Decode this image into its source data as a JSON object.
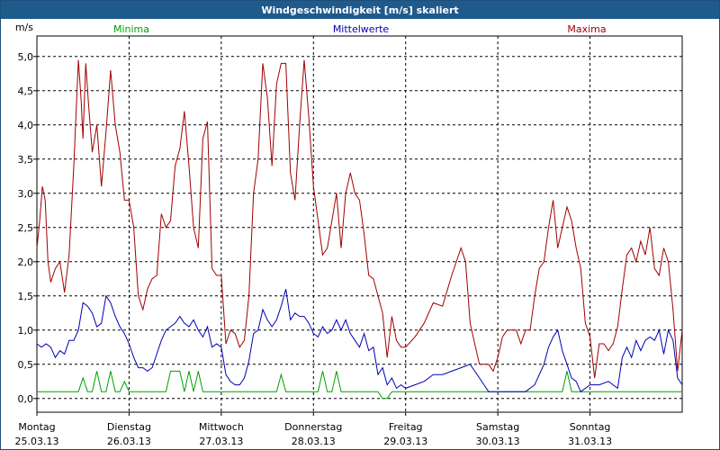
{
  "window": {
    "title": "Windgeschwindigkeit [m/s] skaliert"
  },
  "chart_data": {
    "type": "line",
    "title": "Windgeschwindigkeit [m/s] skaliert",
    "ylabel": "m/s",
    "ylim": [
      -0.2,
      5.3
    ],
    "xlim": [
      0,
      7
    ],
    "grid": true,
    "legend": [
      "Minima",
      "Mittelwerte",
      "Maxima"
    ],
    "yticks": [
      {
        "v": 0.0,
        "label": "0,0"
      },
      {
        "v": 0.5,
        "label": "0,5"
      },
      {
        "v": 1.0,
        "label": "1,0"
      },
      {
        "v": 1.5,
        "label": "1,5"
      },
      {
        "v": 2.0,
        "label": "2,0"
      },
      {
        "v": 2.5,
        "label": "2,5"
      },
      {
        "v": 3.0,
        "label": "3,0"
      },
      {
        "v": 3.5,
        "label": "3,5"
      },
      {
        "v": 4.0,
        "label": "4,0"
      },
      {
        "v": 4.5,
        "label": "4,5"
      },
      {
        "v": 5.0,
        "label": "5,0"
      }
    ],
    "days": [
      {
        "name": "Montag",
        "date": "25.03.13",
        "x": 0
      },
      {
        "name": "Dienstag",
        "date": "26.03.13",
        "x": 1
      },
      {
        "name": "Mittwoch",
        "date": "27.03.13",
        "x": 2
      },
      {
        "name": "Donnerstag",
        "date": "28.03.13",
        "x": 3
      },
      {
        "name": "Freitag",
        "date": "29.03.13",
        "x": 4
      },
      {
        "name": "Samstag",
        "date": "30.03.13",
        "x": 5
      },
      {
        "name": "Sonntag",
        "date": "31.03.13",
        "x": 6
      }
    ],
    "series": [
      {
        "name": "Minima",
        "color": "#00a000",
        "points": [
          [
            0,
            0.1
          ],
          [
            0.45,
            0.1
          ],
          [
            0.5,
            0.3
          ],
          [
            0.55,
            0.1
          ],
          [
            0.6,
            0.1
          ],
          [
            0.65,
            0.4
          ],
          [
            0.7,
            0.1
          ],
          [
            0.75,
            0.1
          ],
          [
            0.8,
            0.4
          ],
          [
            0.85,
            0.1
          ],
          [
            0.9,
            0.1
          ],
          [
            0.95,
            0.25
          ],
          [
            1.0,
            0.1
          ],
          [
            1.4,
            0.1
          ],
          [
            1.45,
            0.4
          ],
          [
            1.55,
            0.4
          ],
          [
            1.6,
            0.1
          ],
          [
            1.65,
            0.4
          ],
          [
            1.7,
            0.1
          ],
          [
            1.75,
            0.4
          ],
          [
            1.8,
            0.1
          ],
          [
            2.0,
            0.1
          ],
          [
            2.6,
            0.1
          ],
          [
            2.65,
            0.35
          ],
          [
            2.7,
            0.1
          ],
          [
            3.05,
            0.1
          ],
          [
            3.1,
            0.4
          ],
          [
            3.15,
            0.1
          ],
          [
            3.2,
            0.1
          ],
          [
            3.25,
            0.4
          ],
          [
            3.3,
            0.1
          ],
          [
            3.7,
            0.1
          ],
          [
            3.75,
            0.0
          ],
          [
            3.8,
            0.0
          ],
          [
            3.85,
            0.1
          ],
          [
            4.0,
            0.1
          ],
          [
            5.0,
            0.1
          ],
          [
            5.7,
            0.1
          ],
          [
            5.75,
            0.4
          ],
          [
            5.8,
            0.1
          ],
          [
            6.0,
            0.1
          ],
          [
            7.0,
            0.1
          ]
        ]
      },
      {
        "name": "Mittelwerte",
        "color": "#0000b4",
        "points": [
          [
            0,
            0.8
          ],
          [
            0.05,
            0.75
          ],
          [
            0.1,
            0.8
          ],
          [
            0.15,
            0.75
          ],
          [
            0.2,
            0.6
          ],
          [
            0.25,
            0.7
          ],
          [
            0.3,
            0.65
          ],
          [
            0.35,
            0.85
          ],
          [
            0.4,
            0.85
          ],
          [
            0.45,
            1.0
          ],
          [
            0.5,
            1.4
          ],
          [
            0.55,
            1.35
          ],
          [
            0.6,
            1.25
          ],
          [
            0.65,
            1.05
          ],
          [
            0.7,
            1.1
          ],
          [
            0.75,
            1.5
          ],
          [
            0.8,
            1.4
          ],
          [
            0.85,
            1.2
          ],
          [
            0.9,
            1.05
          ],
          [
            0.95,
            0.95
          ],
          [
            1.0,
            0.8
          ],
          [
            1.05,
            0.6
          ],
          [
            1.1,
            0.45
          ],
          [
            1.15,
            0.45
          ],
          [
            1.2,
            0.4
          ],
          [
            1.25,
            0.45
          ],
          [
            1.3,
            0.65
          ],
          [
            1.35,
            0.85
          ],
          [
            1.4,
            1.0
          ],
          [
            1.45,
            1.05
          ],
          [
            1.5,
            1.1
          ],
          [
            1.55,
            1.2
          ],
          [
            1.6,
            1.1
          ],
          [
            1.65,
            1.05
          ],
          [
            1.7,
            1.15
          ],
          [
            1.75,
            1.0
          ],
          [
            1.8,
            0.9
          ],
          [
            1.85,
            1.05
          ],
          [
            1.9,
            0.75
          ],
          [
            1.95,
            0.8
          ],
          [
            2.0,
            0.75
          ],
          [
            2.05,
            0.35
          ],
          [
            2.1,
            0.25
          ],
          [
            2.15,
            0.2
          ],
          [
            2.2,
            0.2
          ],
          [
            2.25,
            0.3
          ],
          [
            2.3,
            0.55
          ],
          [
            2.35,
            0.95
          ],
          [
            2.4,
            1.0
          ],
          [
            2.45,
            1.3
          ],
          [
            2.5,
            1.15
          ],
          [
            2.55,
            1.05
          ],
          [
            2.6,
            1.15
          ],
          [
            2.65,
            1.35
          ],
          [
            2.7,
            1.6
          ],
          [
            2.75,
            1.15
          ],
          [
            2.8,
            1.25
          ],
          [
            2.85,
            1.2
          ],
          [
            2.9,
            1.2
          ],
          [
            2.95,
            1.1
          ],
          [
            3.0,
            0.95
          ],
          [
            3.05,
            0.9
          ],
          [
            3.1,
            1.05
          ],
          [
            3.15,
            0.95
          ],
          [
            3.2,
            1.0
          ],
          [
            3.25,
            1.15
          ],
          [
            3.3,
            1.0
          ],
          [
            3.35,
            1.15
          ],
          [
            3.4,
            0.95
          ],
          [
            3.45,
            0.85
          ],
          [
            3.5,
            0.75
          ],
          [
            3.55,
            0.95
          ],
          [
            3.6,
            0.7
          ],
          [
            3.65,
            0.75
          ],
          [
            3.7,
            0.35
          ],
          [
            3.75,
            0.45
          ],
          [
            3.8,
            0.2
          ],
          [
            3.85,
            0.3
          ],
          [
            3.9,
            0.15
          ],
          [
            3.95,
            0.2
          ],
          [
            4.0,
            0.15
          ],
          [
            4.1,
            0.2
          ],
          [
            4.2,
            0.25
          ],
          [
            4.3,
            0.35
          ],
          [
            4.4,
            0.35
          ],
          [
            4.5,
            0.4
          ],
          [
            4.6,
            0.45
          ],
          [
            4.7,
            0.5
          ],
          [
            4.8,
            0.3
          ],
          [
            4.85,
            0.2
          ],
          [
            4.9,
            0.1
          ],
          [
            5.0,
            0.1
          ],
          [
            5.3,
            0.1
          ],
          [
            5.4,
            0.2
          ],
          [
            5.5,
            0.5
          ],
          [
            5.55,
            0.75
          ],
          [
            5.6,
            0.9
          ],
          [
            5.65,
            1.0
          ],
          [
            5.7,
            0.7
          ],
          [
            5.75,
            0.5
          ],
          [
            5.8,
            0.3
          ],
          [
            5.85,
            0.25
          ],
          [
            5.9,
            0.1
          ],
          [
            6.0,
            0.2
          ],
          [
            6.1,
            0.2
          ],
          [
            6.2,
            0.25
          ],
          [
            6.3,
            0.15
          ],
          [
            6.35,
            0.6
          ],
          [
            6.4,
            0.75
          ],
          [
            6.45,
            0.6
          ],
          [
            6.5,
            0.85
          ],
          [
            6.55,
            0.7
          ],
          [
            6.6,
            0.85
          ],
          [
            6.65,
            0.9
          ],
          [
            6.7,
            0.85
          ],
          [
            6.75,
            1.0
          ],
          [
            6.8,
            0.65
          ],
          [
            6.85,
            1.0
          ],
          [
            6.9,
            0.85
          ],
          [
            6.95,
            0.3
          ],
          [
            7.0,
            0.2
          ]
        ]
      },
      {
        "name": "Maxima",
        "color": "#a00000",
        "points": [
          [
            0,
            2.2
          ],
          [
            0.03,
            2.6
          ],
          [
            0.06,
            3.1
          ],
          [
            0.09,
            2.9
          ],
          [
            0.12,
            2.0
          ],
          [
            0.15,
            1.7
          ],
          [
            0.2,
            1.9
          ],
          [
            0.25,
            2.0
          ],
          [
            0.3,
            1.55
          ],
          [
            0.35,
            2.1
          ],
          [
            0.4,
            3.4
          ],
          [
            0.45,
            4.95
          ],
          [
            0.48,
            4.35
          ],
          [
            0.5,
            3.8
          ],
          [
            0.53,
            4.9
          ],
          [
            0.56,
            4.3
          ],
          [
            0.6,
            3.6
          ],
          [
            0.65,
            4.0
          ],
          [
            0.7,
            3.1
          ],
          [
            0.75,
            3.9
          ],
          [
            0.8,
            4.8
          ],
          [
            0.85,
            4.0
          ],
          [
            0.9,
            3.6
          ],
          [
            0.95,
            2.9
          ],
          [
            1.0,
            2.9
          ],
          [
            1.05,
            2.5
          ],
          [
            1.1,
            1.5
          ],
          [
            1.15,
            1.3
          ],
          [
            1.2,
            1.6
          ],
          [
            1.25,
            1.75
          ],
          [
            1.3,
            1.8
          ],
          [
            1.35,
            2.7
          ],
          [
            1.4,
            2.5
          ],
          [
            1.45,
            2.6
          ],
          [
            1.5,
            3.4
          ],
          [
            1.55,
            3.65
          ],
          [
            1.6,
            4.2
          ],
          [
            1.65,
            3.4
          ],
          [
            1.7,
            2.5
          ],
          [
            1.75,
            2.2
          ],
          [
            1.8,
            3.8
          ],
          [
            1.85,
            4.05
          ],
          [
            1.9,
            1.9
          ],
          [
            1.95,
            1.8
          ],
          [
            2.0,
            1.8
          ],
          [
            2.05,
            0.8
          ],
          [
            2.1,
            1.0
          ],
          [
            2.15,
            0.95
          ],
          [
            2.2,
            0.75
          ],
          [
            2.25,
            0.85
          ],
          [
            2.3,
            1.5
          ],
          [
            2.35,
            3.0
          ],
          [
            2.4,
            3.5
          ],
          [
            2.45,
            4.9
          ],
          [
            2.5,
            4.4
          ],
          [
            2.55,
            3.4
          ],
          [
            2.6,
            4.6
          ],
          [
            2.65,
            4.9
          ],
          [
            2.7,
            4.9
          ],
          [
            2.75,
            3.3
          ],
          [
            2.8,
            2.9
          ],
          [
            2.85,
            4.0
          ],
          [
            2.9,
            4.95
          ],
          [
            2.95,
            4.1
          ],
          [
            3.0,
            3.1
          ],
          [
            3.05,
            2.6
          ],
          [
            3.1,
            2.1
          ],
          [
            3.15,
            2.2
          ],
          [
            3.2,
            2.6
          ],
          [
            3.25,
            3.0
          ],
          [
            3.3,
            2.2
          ],
          [
            3.35,
            3.0
          ],
          [
            3.4,
            3.3
          ],
          [
            3.45,
            3.0
          ],
          [
            3.5,
            2.9
          ],
          [
            3.55,
            2.4
          ],
          [
            3.6,
            1.8
          ],
          [
            3.65,
            1.75
          ],
          [
            3.7,
            1.5
          ],
          [
            3.75,
            1.25
          ],
          [
            3.8,
            0.6
          ],
          [
            3.85,
            1.2
          ],
          [
            3.9,
            0.85
          ],
          [
            3.95,
            0.75
          ],
          [
            4.0,
            0.75
          ],
          [
            4.1,
            0.9
          ],
          [
            4.2,
            1.1
          ],
          [
            4.3,
            1.4
          ],
          [
            4.4,
            1.35
          ],
          [
            4.5,
            1.8
          ],
          [
            4.6,
            2.2
          ],
          [
            4.65,
            2.0
          ],
          [
            4.7,
            1.1
          ],
          [
            4.75,
            0.8
          ],
          [
            4.8,
            0.5
          ],
          [
            4.85,
            0.5
          ],
          [
            4.9,
            0.5
          ],
          [
            4.95,
            0.4
          ],
          [
            5.0,
            0.6
          ],
          [
            5.05,
            0.9
          ],
          [
            5.1,
            1.0
          ],
          [
            5.2,
            1.0
          ],
          [
            5.25,
            0.8
          ],
          [
            5.3,
            1.0
          ],
          [
            5.35,
            1.0
          ],
          [
            5.4,
            1.5
          ],
          [
            5.45,
            1.9
          ],
          [
            5.5,
            2.0
          ],
          [
            5.55,
            2.5
          ],
          [
            5.6,
            2.9
          ],
          [
            5.65,
            2.2
          ],
          [
            5.7,
            2.5
          ],
          [
            5.75,
            2.8
          ],
          [
            5.8,
            2.6
          ],
          [
            5.85,
            2.2
          ],
          [
            5.9,
            1.9
          ],
          [
            5.95,
            1.1
          ],
          [
            6.0,
            0.9
          ],
          [
            6.05,
            0.3
          ],
          [
            6.1,
            0.8
          ],
          [
            6.15,
            0.8
          ],
          [
            6.2,
            0.7
          ],
          [
            6.25,
            0.8
          ],
          [
            6.3,
            1.05
          ],
          [
            6.35,
            1.6
          ],
          [
            6.4,
            2.1
          ],
          [
            6.45,
            2.2
          ],
          [
            6.5,
            2.0
          ],
          [
            6.55,
            2.3
          ],
          [
            6.6,
            2.1
          ],
          [
            6.65,
            2.5
          ],
          [
            6.7,
            1.9
          ],
          [
            6.75,
            1.8
          ],
          [
            6.8,
            2.2
          ],
          [
            6.85,
            2.0
          ],
          [
            6.9,
            1.3
          ],
          [
            6.95,
            0.4
          ],
          [
            7.0,
            1.0
          ]
        ]
      }
    ]
  }
}
